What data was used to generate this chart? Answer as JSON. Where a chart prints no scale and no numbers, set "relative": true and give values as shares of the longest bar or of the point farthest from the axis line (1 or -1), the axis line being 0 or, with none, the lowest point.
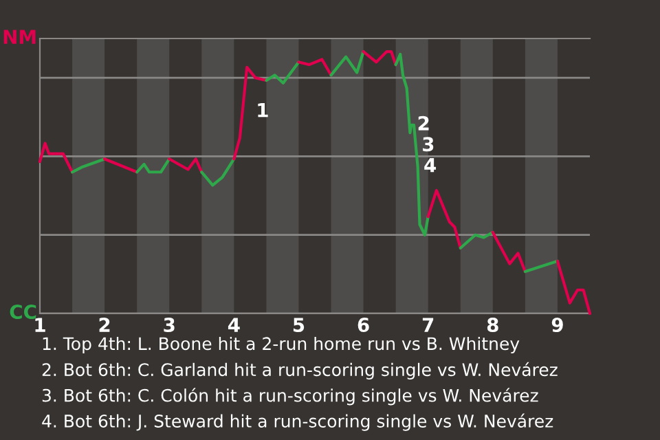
{
  "chart_data": {
    "type": "line",
    "relative": true,
    "series": [
      {
        "name": "NM",
        "color": "#e0004d",
        "x": [
          1.0,
          1.08,
          1.14,
          1.36,
          1.5
        ],
        "values": [
          0.58,
          0.65,
          0.61,
          0.61,
          0.54
        ]
      },
      {
        "name": "CC",
        "color": "#2ea84a",
        "x": [
          1.5,
          1.66,
          2.0
        ],
        "values": [
          0.54,
          0.56,
          0.59
        ]
      },
      {
        "color": "#e0004d",
        "x": [
          2.0,
          2.5
        ],
        "values": [
          0.59,
          0.54
        ]
      },
      {
        "color": "#2ea84a",
        "x": [
          2.5,
          2.61,
          2.69,
          2.87,
          3.0
        ],
        "values": [
          0.54,
          0.57,
          0.54,
          0.54,
          0.59
        ]
      },
      {
        "color": "#e0004d",
        "x": [
          3.0,
          3.29,
          3.41,
          3.5
        ],
        "values": [
          0.59,
          0.55,
          0.59,
          0.54
        ]
      },
      {
        "color": "#2ea84a",
        "x": [
          3.5,
          3.67,
          3.82,
          4.0
        ],
        "values": [
          0.54,
          0.49,
          0.52,
          0.59
        ]
      },
      {
        "color": "#e0004d",
        "x": [
          4.0,
          4.09,
          4.2,
          4.33,
          4.5
        ],
        "values": [
          0.59,
          0.67,
          0.94,
          0.9,
          0.89
        ]
      },
      {
        "color": "#2ea84a",
        "x": [
          4.5,
          4.63,
          4.76,
          5.0
        ],
        "values": [
          0.89,
          0.91,
          0.88,
          0.96
        ]
      },
      {
        "color": "#e0004d",
        "x": [
          5.0,
          5.16,
          5.36,
          5.5
        ],
        "values": [
          0.96,
          0.95,
          0.97,
          0.91
        ]
      },
      {
        "color": "#2ea84a",
        "x": [
          5.5,
          5.63,
          5.73,
          5.9,
          6.0
        ],
        "values": [
          0.91,
          0.95,
          0.98,
          0.92,
          1
        ]
      },
      {
        "color": "#e0004d",
        "x": [
          6.0,
          6.2,
          6.36,
          6.43,
          6.5
        ],
        "values": [
          1,
          0.96,
          1,
          1,
          0.95
        ]
      },
      {
        "color": "#2ea84a",
        "x": [
          6.5,
          6.57,
          6.61,
          6.67,
          6.72,
          6.74,
          6.78,
          6.84,
          6.87,
          6.95,
          7.0
        ],
        "values": [
          0.95,
          0.99,
          0.91,
          0.86,
          0.69,
          0.72,
          0.72,
          0.56,
          0.34,
          0.3,
          0.37
        ]
      },
      {
        "color": "#e0004d",
        "x": [
          7.0,
          7.13,
          7.33,
          7.41,
          7.5
        ],
        "values": [
          0.37,
          0.47,
          0.35,
          0.33,
          0.25
        ]
      },
      {
        "color": "#2ea84a",
        "x": [
          7.5,
          7.73,
          7.86,
          8.0
        ],
        "values": [
          0.25,
          0.3,
          0.29,
          0.31
        ]
      },
      {
        "color": "#e0004d",
        "x": [
          8.0,
          8.26,
          8.39,
          8.5
        ],
        "values": [
          0.31,
          0.19,
          0.23,
          0.16
        ]
      },
      {
        "color": "#2ea84a",
        "x": [
          8.5,
          9.0
        ],
        "values": [
          0.16,
          0.2
        ]
      },
      {
        "color": "#e0004d",
        "x": [
          9.0,
          9.19,
          9.31,
          9.4,
          9.5
        ],
        "values": [
          0.2,
          0.04,
          0.09,
          0.09,
          0
        ]
      }
    ],
    "xlim": [
      1,
      9.5
    ],
    "xticks": [
      1,
      2,
      3,
      4,
      5,
      6,
      7,
      8,
      9
    ],
    "grid": "y",
    "bands": [
      {
        "axis": "x",
        "from": 1.5,
        "to": 2,
        "label": null,
        "color": "#4e4c4a"
      },
      {
        "axis": "x",
        "from": 2.5,
        "to": 3,
        "label": null,
        "color": "#4e4c4a"
      },
      {
        "axis": "x",
        "from": 3.5,
        "to": 4,
        "label": null,
        "color": "#4e4c4a"
      },
      {
        "axis": "x",
        "from": 4.5,
        "to": 5,
        "label": null,
        "color": "#4e4c4a"
      },
      {
        "axis": "x",
        "from": 5.5,
        "to": 6,
        "label": null,
        "color": "#4e4c4a"
      },
      {
        "axis": "x",
        "from": 6.5,
        "to": 7,
        "label": null,
        "color": "#4e4c4a"
      },
      {
        "axis": "x",
        "from": 7.5,
        "to": 8,
        "label": null,
        "color": "#4e4c4a"
      },
      {
        "axis": "x",
        "from": 8.5,
        "to": 9,
        "label": null,
        "color": "#4e4c4a"
      }
    ],
    "annotations": [
      {
        "text": "1",
        "x": 4.25,
        "y": 0.77
      },
      {
        "text": "2",
        "x": 6.74,
        "y": 0.72
      },
      {
        "text": "3",
        "x": 6.81,
        "y": 0.64
      },
      {
        "text": "4",
        "x": 6.84,
        "y": 0.56
      },
      "1. Top 4th: L. Boone hit a 2-run home run vs B. Whitney",
      "2. Bot 6th: C. Garland hit a run-scoring single vs W. Nevárez",
      "3. Bot 6th: C. Colón hit a run-scoring single vs W. Nevárez",
      "4. Bot 6th: J. Steward hit a run-scoring single vs W. Nevárez"
    ],
    "marker": "none",
    "line_style": "solid"
  }
}
